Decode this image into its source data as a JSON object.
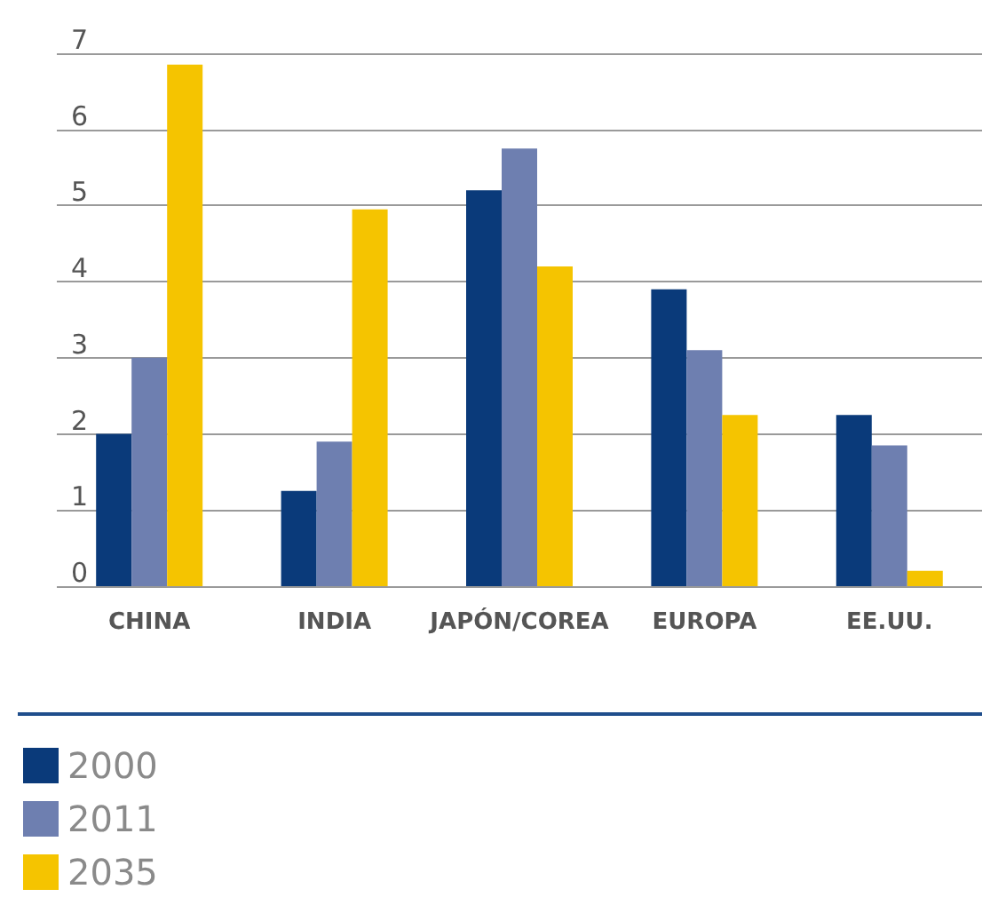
{
  "chart_data": {
    "type": "bar",
    "categories": [
      "CHINA",
      "INDIA",
      "JAPÓN/COREA",
      "EUROPA",
      "EE.UU."
    ],
    "series": [
      {
        "name": "2000",
        "color": "#0a3a7a",
        "values": [
          2.0,
          1.25,
          5.2,
          3.9,
          2.25
        ]
      },
      {
        "name": "2011",
        "color": "#6e7fb0",
        "values": [
          3.0,
          1.9,
          5.75,
          3.1,
          1.85
        ]
      },
      {
        "name": "2035",
        "color": "#f5c400",
        "values": [
          6.85,
          4.95,
          4.2,
          2.25,
          0.2
        ]
      }
    ],
    "ylim": [
      0,
      7
    ],
    "yticks": [
      0,
      1,
      2,
      3,
      4,
      5,
      6,
      7
    ],
    "grid": "y",
    "legend": "bottom left"
  }
}
